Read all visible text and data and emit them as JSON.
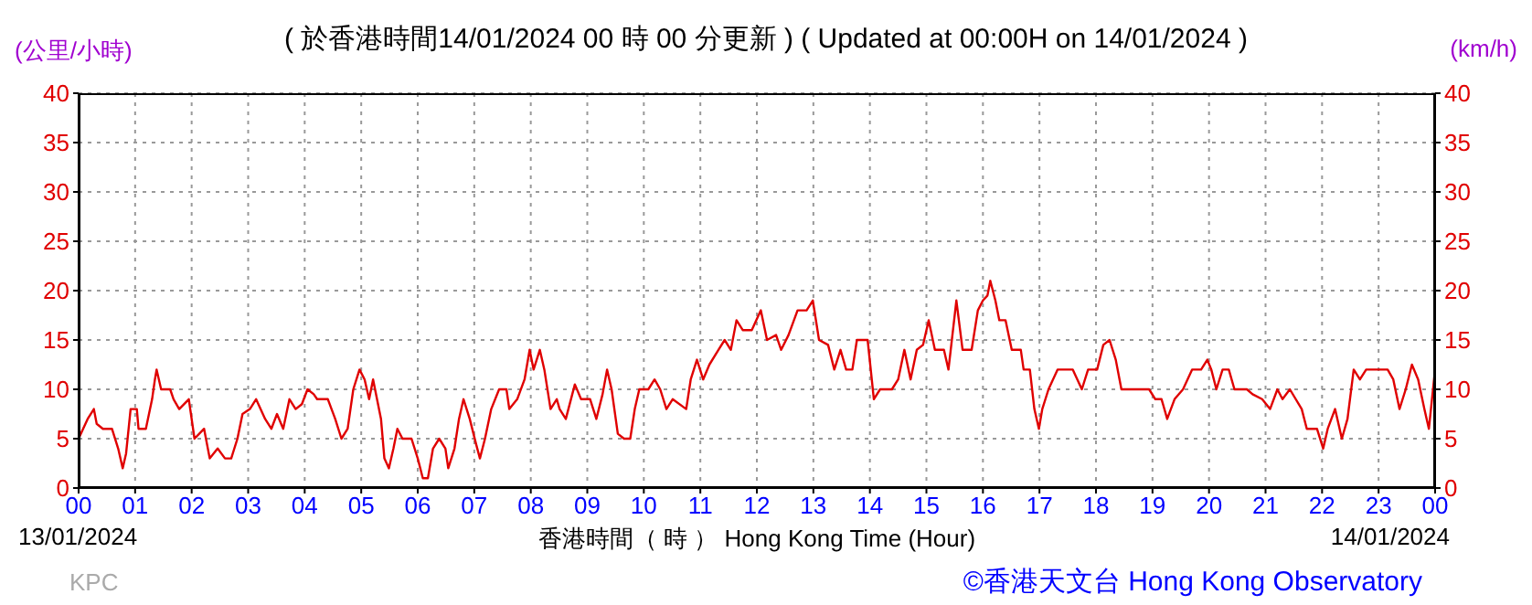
{
  "chart_data": {
    "type": "line",
    "title": "( 於香港時間14/01/2024 00 時 00 分更新 ) ( Updated at 00:00H on 14/01/2024 )",
    "xlabel": "香港時間（ 時 ） Hong Kong Time (Hour)",
    "ylabel": "(公里/小時)",
    "y2label": "(km/h)",
    "annotations": [
      "13/01/2024",
      "14/01/2024",
      "KPC",
      "©香港天文台 Hong Kong Observatory"
    ],
    "series": [
      {
        "color": "#e00000",
        "x": [
          0,
          0.16,
          0.27,
          0.32,
          0.43,
          0.59,
          0.7,
          0.78,
          0.84,
          0.92,
          1.03,
          1.06,
          1.19,
          1.3,
          1.35,
          1.38,
          1.46,
          1.62,
          1.68,
          1.78,
          1.95,
          2.05,
          2.22,
          2.32,
          2.46,
          2.59,
          2.7,
          2.81,
          2.9,
          3.03,
          3.14,
          3.3,
          3.41,
          3.51,
          3.62,
          3.73,
          3.84,
          3.95,
          4.05,
          4.16,
          4.22,
          4.41,
          4.54,
          4.65,
          4.76,
          4.86,
          4.97,
          5.06,
          5.14,
          5.21,
          5.35,
          5.41,
          5.49,
          5.57,
          5.64,
          5.73,
          5.89,
          6.0,
          6.09,
          6.18,
          6.27,
          6.38,
          6.49,
          6.54,
          6.65,
          6.73,
          6.81,
          6.92,
          7.03,
          7.1,
          7.19,
          7.3,
          7.44,
          7.57,
          7.62,
          7.76,
          7.89,
          7.98,
          8.05,
          8.16,
          8.24,
          8.35,
          8.46,
          8.51,
          8.62,
          8.78,
          8.89,
          9.05,
          9.16,
          9.27,
          9.35,
          9.43,
          9.54,
          9.65,
          9.76,
          9.84,
          9.92,
          10.08,
          10.19,
          10.29,
          10.4,
          10.51,
          10.75,
          10.83,
          10.94,
          11.05,
          11.16,
          11.32,
          11.43,
          11.54,
          11.64,
          11.75,
          11.91,
          12.07,
          12.18,
          12.34,
          12.43,
          12.56,
          12.72,
          12.88,
          12.99,
          13.1,
          13.26,
          13.37,
          13.48,
          13.58,
          13.69,
          13.77,
          13.96,
          14.07,
          14.18,
          14.39,
          14.5,
          14.61,
          14.72,
          14.83,
          14.94,
          15.04,
          15.15,
          15.31,
          15.39,
          15.53,
          15.64,
          15.8,
          15.91,
          16.0,
          16.08,
          16.13,
          16.22,
          16.29,
          16.4,
          16.51,
          16.67,
          16.72,
          16.83,
          16.91,
          16.99,
          17.05,
          17.16,
          17.32,
          17.59,
          17.75,
          17.86,
          18.02,
          18.13,
          18.24,
          18.35,
          18.45,
          18.94,
          19.05,
          19.16,
          19.26,
          19.39,
          19.54,
          19.7,
          19.86,
          19.97,
          20.04,
          20.13,
          20.24,
          20.35,
          20.45,
          20.67,
          20.77,
          20.94,
          21.08,
          21.21,
          21.3,
          21.43,
          21.64,
          21.73,
          21.91,
          22.02,
          22.1,
          22.23,
          22.35,
          22.45,
          22.56,
          22.67,
          22.78,
          22.89,
          23.16,
          23.26,
          23.37,
          23.48,
          23.59,
          23.7,
          23.81,
          23.89,
          23.99
        ],
        "values": [
          5,
          7,
          8,
          6.5,
          6,
          6,
          4,
          2,
          3.5,
          8,
          8,
          6,
          6,
          9,
          11,
          12,
          10,
          10,
          9,
          8,
          9,
          5,
          6,
          3,
          4,
          3,
          3,
          5,
          7.5,
          8,
          9,
          7,
          6,
          7.5,
          6,
          9,
          8,
          8.5,
          10,
          9.5,
          9,
          9,
          7,
          5,
          6,
          10,
          12,
          11,
          9,
          11,
          7,
          3,
          2,
          4,
          6,
          5,
          5,
          3,
          1,
          1,
          4,
          5,
          4,
          2,
          4,
          7,
          9,
          7,
          4.5,
          3,
          5,
          8,
          10,
          10,
          8,
          9,
          11,
          14,
          12,
          14,
          12,
          8,
          9,
          8,
          7,
          10.5,
          9,
          9,
          7,
          9.5,
          12,
          10,
          5.5,
          5,
          5,
          8,
          10,
          10,
          11,
          10,
          8,
          9,
          8,
          11,
          13,
          11,
          12.5,
          14,
          15,
          14,
          17,
          16,
          16,
          18,
          15,
          15.5,
          14,
          15.5,
          18,
          18,
          19,
          15,
          14.5,
          12,
          14,
          12,
          12,
          15,
          15,
          9,
          10,
          10,
          11,
          14,
          11,
          14,
          14.5,
          17,
          14,
          14,
          12,
          19,
          14,
          14,
          18,
          19,
          19.5,
          21,
          19,
          17,
          17,
          14,
          14,
          12,
          12,
          8,
          6,
          8,
          10,
          12,
          12,
          10,
          12,
          12,
          14.5,
          15,
          13,
          10,
          10,
          9,
          9,
          7,
          9,
          10,
          12,
          12,
          13,
          12,
          10,
          12,
          12,
          10,
          10,
          9.5,
          9,
          8,
          10,
          9,
          10,
          8,
          6,
          6,
          4,
          6,
          8,
          5,
          7,
          12,
          11,
          12,
          12,
          12,
          11,
          8,
          10,
          12.5,
          11,
          8,
          6,
          11.5
        ]
      }
    ],
    "xlim": [
      0,
      24
    ],
    "xticks": [
      {
        "value": 0,
        "label": "00"
      },
      {
        "value": 1,
        "label": "01"
      },
      {
        "value": 2,
        "label": "02"
      },
      {
        "value": 3,
        "label": "03"
      },
      {
        "value": 4,
        "label": "04"
      },
      {
        "value": 5,
        "label": "05"
      },
      {
        "value": 6,
        "label": "06"
      },
      {
        "value": 7,
        "label": "07"
      },
      {
        "value": 8,
        "label": "08"
      },
      {
        "value": 9,
        "label": "09"
      },
      {
        "value": 10,
        "label": "10"
      },
      {
        "value": 11,
        "label": "11"
      },
      {
        "value": 12,
        "label": "12"
      },
      {
        "value": 13,
        "label": "13"
      },
      {
        "value": 14,
        "label": "14"
      },
      {
        "value": 15,
        "label": "15"
      },
      {
        "value": 16,
        "label": "16"
      },
      {
        "value": 17,
        "label": "17"
      },
      {
        "value": 18,
        "label": "18"
      },
      {
        "value": 19,
        "label": "19"
      },
      {
        "value": 20,
        "label": "20"
      },
      {
        "value": 21,
        "label": "21"
      },
      {
        "value": 22,
        "label": "22"
      },
      {
        "value": 23,
        "label": "23"
      },
      {
        "value": 24,
        "label": "00"
      }
    ],
    "ylim": [
      0,
      40
    ],
    "yticks": [
      0,
      5,
      10,
      15,
      20,
      25,
      30,
      35,
      40
    ],
    "y2lim": [
      0,
      40
    ],
    "y2ticks": [
      0,
      5,
      10,
      15,
      20,
      25,
      30,
      35,
      40
    ],
    "grid": true
  }
}
